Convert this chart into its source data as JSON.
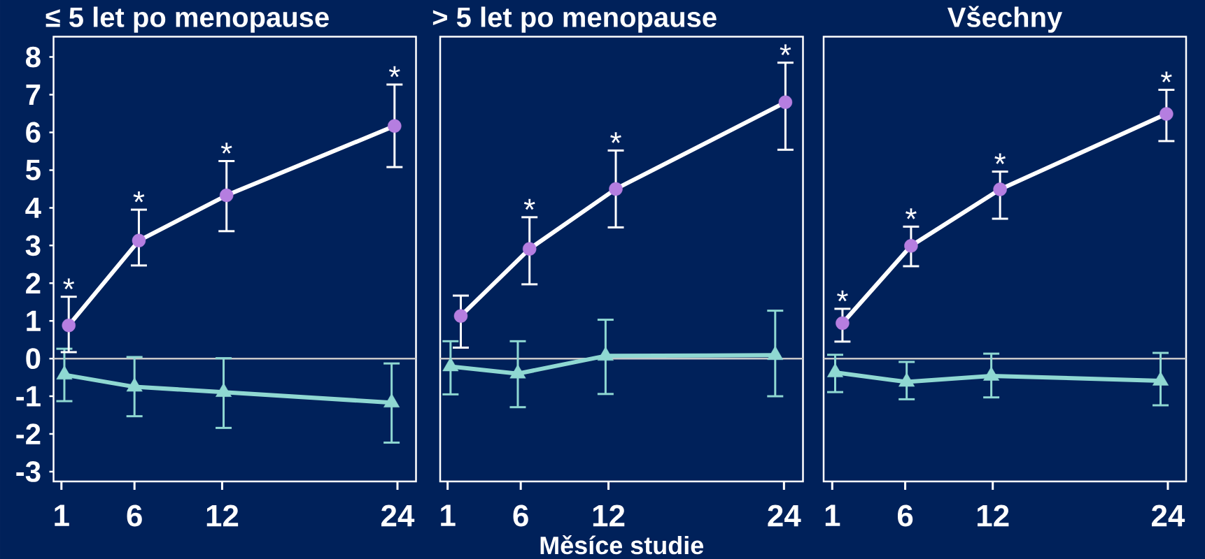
{
  "chart_data": [
    {
      "type": "line",
      "title": "≤ 5 let po menopause",
      "xlim": [
        0.46,
        25.27
      ],
      "xticks": [
        1,
        6,
        12,
        24
      ],
      "ylim": [
        -3.26,
        8.54
      ],
      "yticks": [
        -3,
        -2,
        -1,
        0,
        1,
        2,
        3,
        4,
        5,
        6,
        7,
        8
      ],
      "series": [
        {
          "color": "#ffffff",
          "colors": [
            "#b57ee0",
            "#b57ee0",
            "#b57ee0",
            "#b57ee0"
          ],
          "marker": "circle",
          "x": [
            1.5,
            6.3,
            12.3,
            23.8
          ],
          "values": [
            0.88,
            3.13,
            4.33,
            6.17
          ],
          "errors": [
            [
              0.17,
              1.64
            ],
            [
              2.47,
              3.95
            ],
            [
              3.38,
              5.24
            ],
            [
              5.08,
              7.27
            ]
          ]
        },
        {
          "color": "#8fd8d2",
          "marker": "triangle",
          "x": [
            1.2,
            6.0,
            12.1,
            23.6
          ],
          "values": [
            -0.43,
            -0.75,
            -0.89,
            -1.17
          ],
          "errors": [
            [
              -1.13,
              0.26
            ],
            [
              -1.53,
              0.04
            ],
            [
              -1.84,
              0.01
            ],
            [
              -2.23,
              -0.13
            ]
          ]
        }
      ],
      "ref_lines": [
        {
          "axis": "y",
          "value": 0,
          "color": "#c8c8c8"
        }
      ],
      "annotations": [
        {
          "text": "*",
          "x": 1.5,
          "y": 0.88
        },
        {
          "text": "*",
          "x": 6.3,
          "y": 3.13
        },
        {
          "text": "*",
          "x": 12.3,
          "y": 4.33
        },
        {
          "text": "*",
          "x": 23.8,
          "y": 6.17
        }
      ]
    },
    {
      "type": "line",
      "title": "> 5 let po menopause",
      "xlabel": "Měsíce studie",
      "xlim": [
        0.49,
        25.3
      ],
      "xticks": [
        1,
        6,
        12,
        24
      ],
      "ylim": [
        -3.26,
        8.54
      ],
      "tick_labels": "x",
      "series": [
        {
          "color": "#ffffff",
          "colors": [
            "#b57ee0",
            "#b57ee0",
            "#b57ee0",
            "#b57ee0"
          ],
          "marker": "circle",
          "x": [
            1.9,
            6.6,
            12.5,
            24.1
          ],
          "values": [
            1.13,
            2.91,
            4.5,
            6.8
          ],
          "errors": [
            [
              0.29,
              1.67
            ],
            [
              1.97,
              3.75
            ],
            [
              3.48,
              5.52
            ],
            [
              5.54,
              7.85
            ]
          ]
        },
        {
          "color": "#8fd8d2",
          "marker": "triangle",
          "x": [
            1.2,
            5.8,
            11.8,
            23.4
          ],
          "values": [
            -0.21,
            -0.4,
            0.07,
            0.09
          ],
          "errors": [
            [
              -0.95,
              0.46
            ],
            [
              -1.29,
              0.46
            ],
            [
              -0.94,
              1.03
            ],
            [
              -1.0,
              1.27
            ]
          ]
        }
      ],
      "ref_lines": [
        {
          "axis": "y",
          "value": 0,
          "color": "#c8c8c8"
        }
      ],
      "annotations": [
        {
          "text": "*",
          "x": 6.6,
          "y": 2.91
        },
        {
          "text": "*",
          "x": 12.5,
          "y": 4.5
        },
        {
          "text": "*",
          "x": 24.1,
          "y": 6.8
        }
      ]
    },
    {
      "type": "line",
      "title": "Všechny",
      "xlim": [
        0.41,
        25.25
      ],
      "xticks": [
        1,
        6,
        12,
        24
      ],
      "ylim": [
        -3.26,
        8.54
      ],
      "tick_labels": "x",
      "series": [
        {
          "color": "#ffffff",
          "colors": [
            "#b57ee0",
            "#b57ee0",
            "#b57ee0",
            "#b57ee0"
          ],
          "marker": "circle",
          "x": [
            1.7,
            6.4,
            12.5,
            23.9
          ],
          "values": [
            0.94,
            2.99,
            4.49,
            6.49
          ],
          "errors": [
            [
              0.45,
              1.32
            ],
            [
              2.45,
              3.5
            ],
            [
              3.71,
              4.96
            ],
            [
              5.77,
              7.13
            ]
          ]
        },
        {
          "color": "#8fd8d2",
          "marker": "triangle",
          "x": [
            1.2,
            6.1,
            11.9,
            23.5
          ],
          "values": [
            -0.37,
            -0.62,
            -0.46,
            -0.59
          ],
          "errors": [
            [
              -0.89,
              0.1
            ],
            [
              -1.08,
              -0.09
            ],
            [
              -1.03,
              0.13
            ],
            [
              -1.24,
              0.15
            ]
          ]
        }
      ],
      "ref_lines": [
        {
          "axis": "y",
          "value": 0,
          "color": "#c8c8c8"
        }
      ],
      "annotations": [
        {
          "text": "*",
          "x": 1.7,
          "y": 0.94
        },
        {
          "text": "*",
          "x": 6.4,
          "y": 2.99
        },
        {
          "text": "*",
          "x": 12.5,
          "y": 4.49
        },
        {
          "text": "*",
          "x": 23.9,
          "y": 6.49
        }
      ]
    }
  ]
}
